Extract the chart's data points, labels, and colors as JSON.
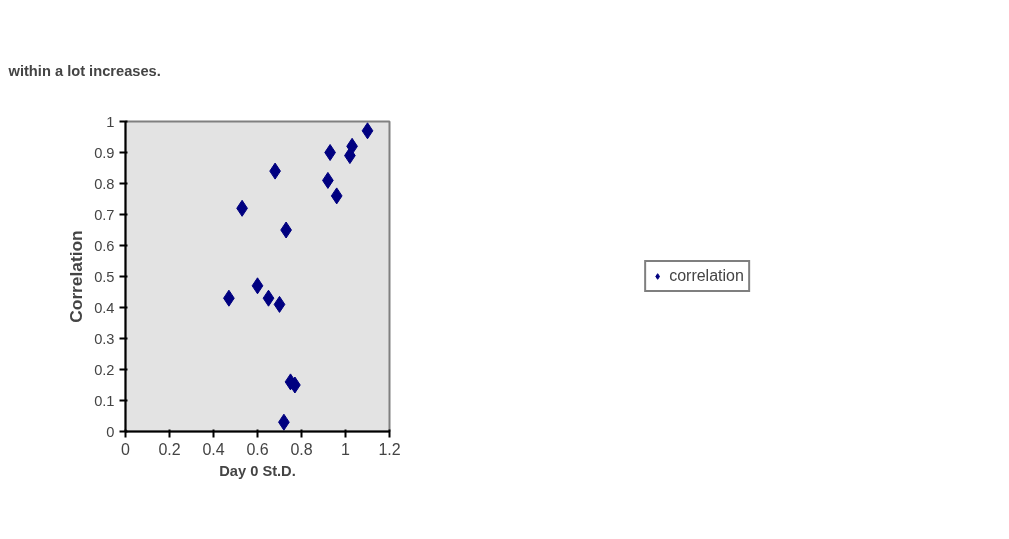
{
  "chart_data": {
    "type": "scatter",
    "xlabel": "Day 0 St.D.",
    "ylabel": "Correlation",
    "annotations": [
      "within a lot increases."
    ],
    "series": [
      {
        "name": "correlation",
        "color": "#000080",
        "x": [
          0.47,
          0.53,
          0.6,
          0.65,
          0.7,
          0.68,
          0.73,
          0.72,
          0.75,
          0.77,
          0.92,
          0.93,
          0.96,
          1.02,
          1.03,
          1.1
        ],
        "values": [
          0.43,
          0.72,
          0.47,
          0.43,
          0.41,
          0.84,
          0.65,
          0.03,
          0.16,
          0.15,
          0.81,
          0.9,
          0.76,
          0.89,
          0.92,
          0.97
        ]
      }
    ],
    "xlim": [
      0,
      1.2
    ],
    "xticks": [
      0,
      0.2,
      0.4,
      0.6,
      0.8,
      1,
      1.2
    ],
    "ylim": [
      0,
      1
    ],
    "yticks": [
      0,
      0.1,
      0.2,
      0.3,
      0.4,
      0.5,
      0.6,
      0.7,
      0.8,
      0.9,
      1
    ],
    "marker": "diamond",
    "legend": "right",
    "grid": false
  }
}
